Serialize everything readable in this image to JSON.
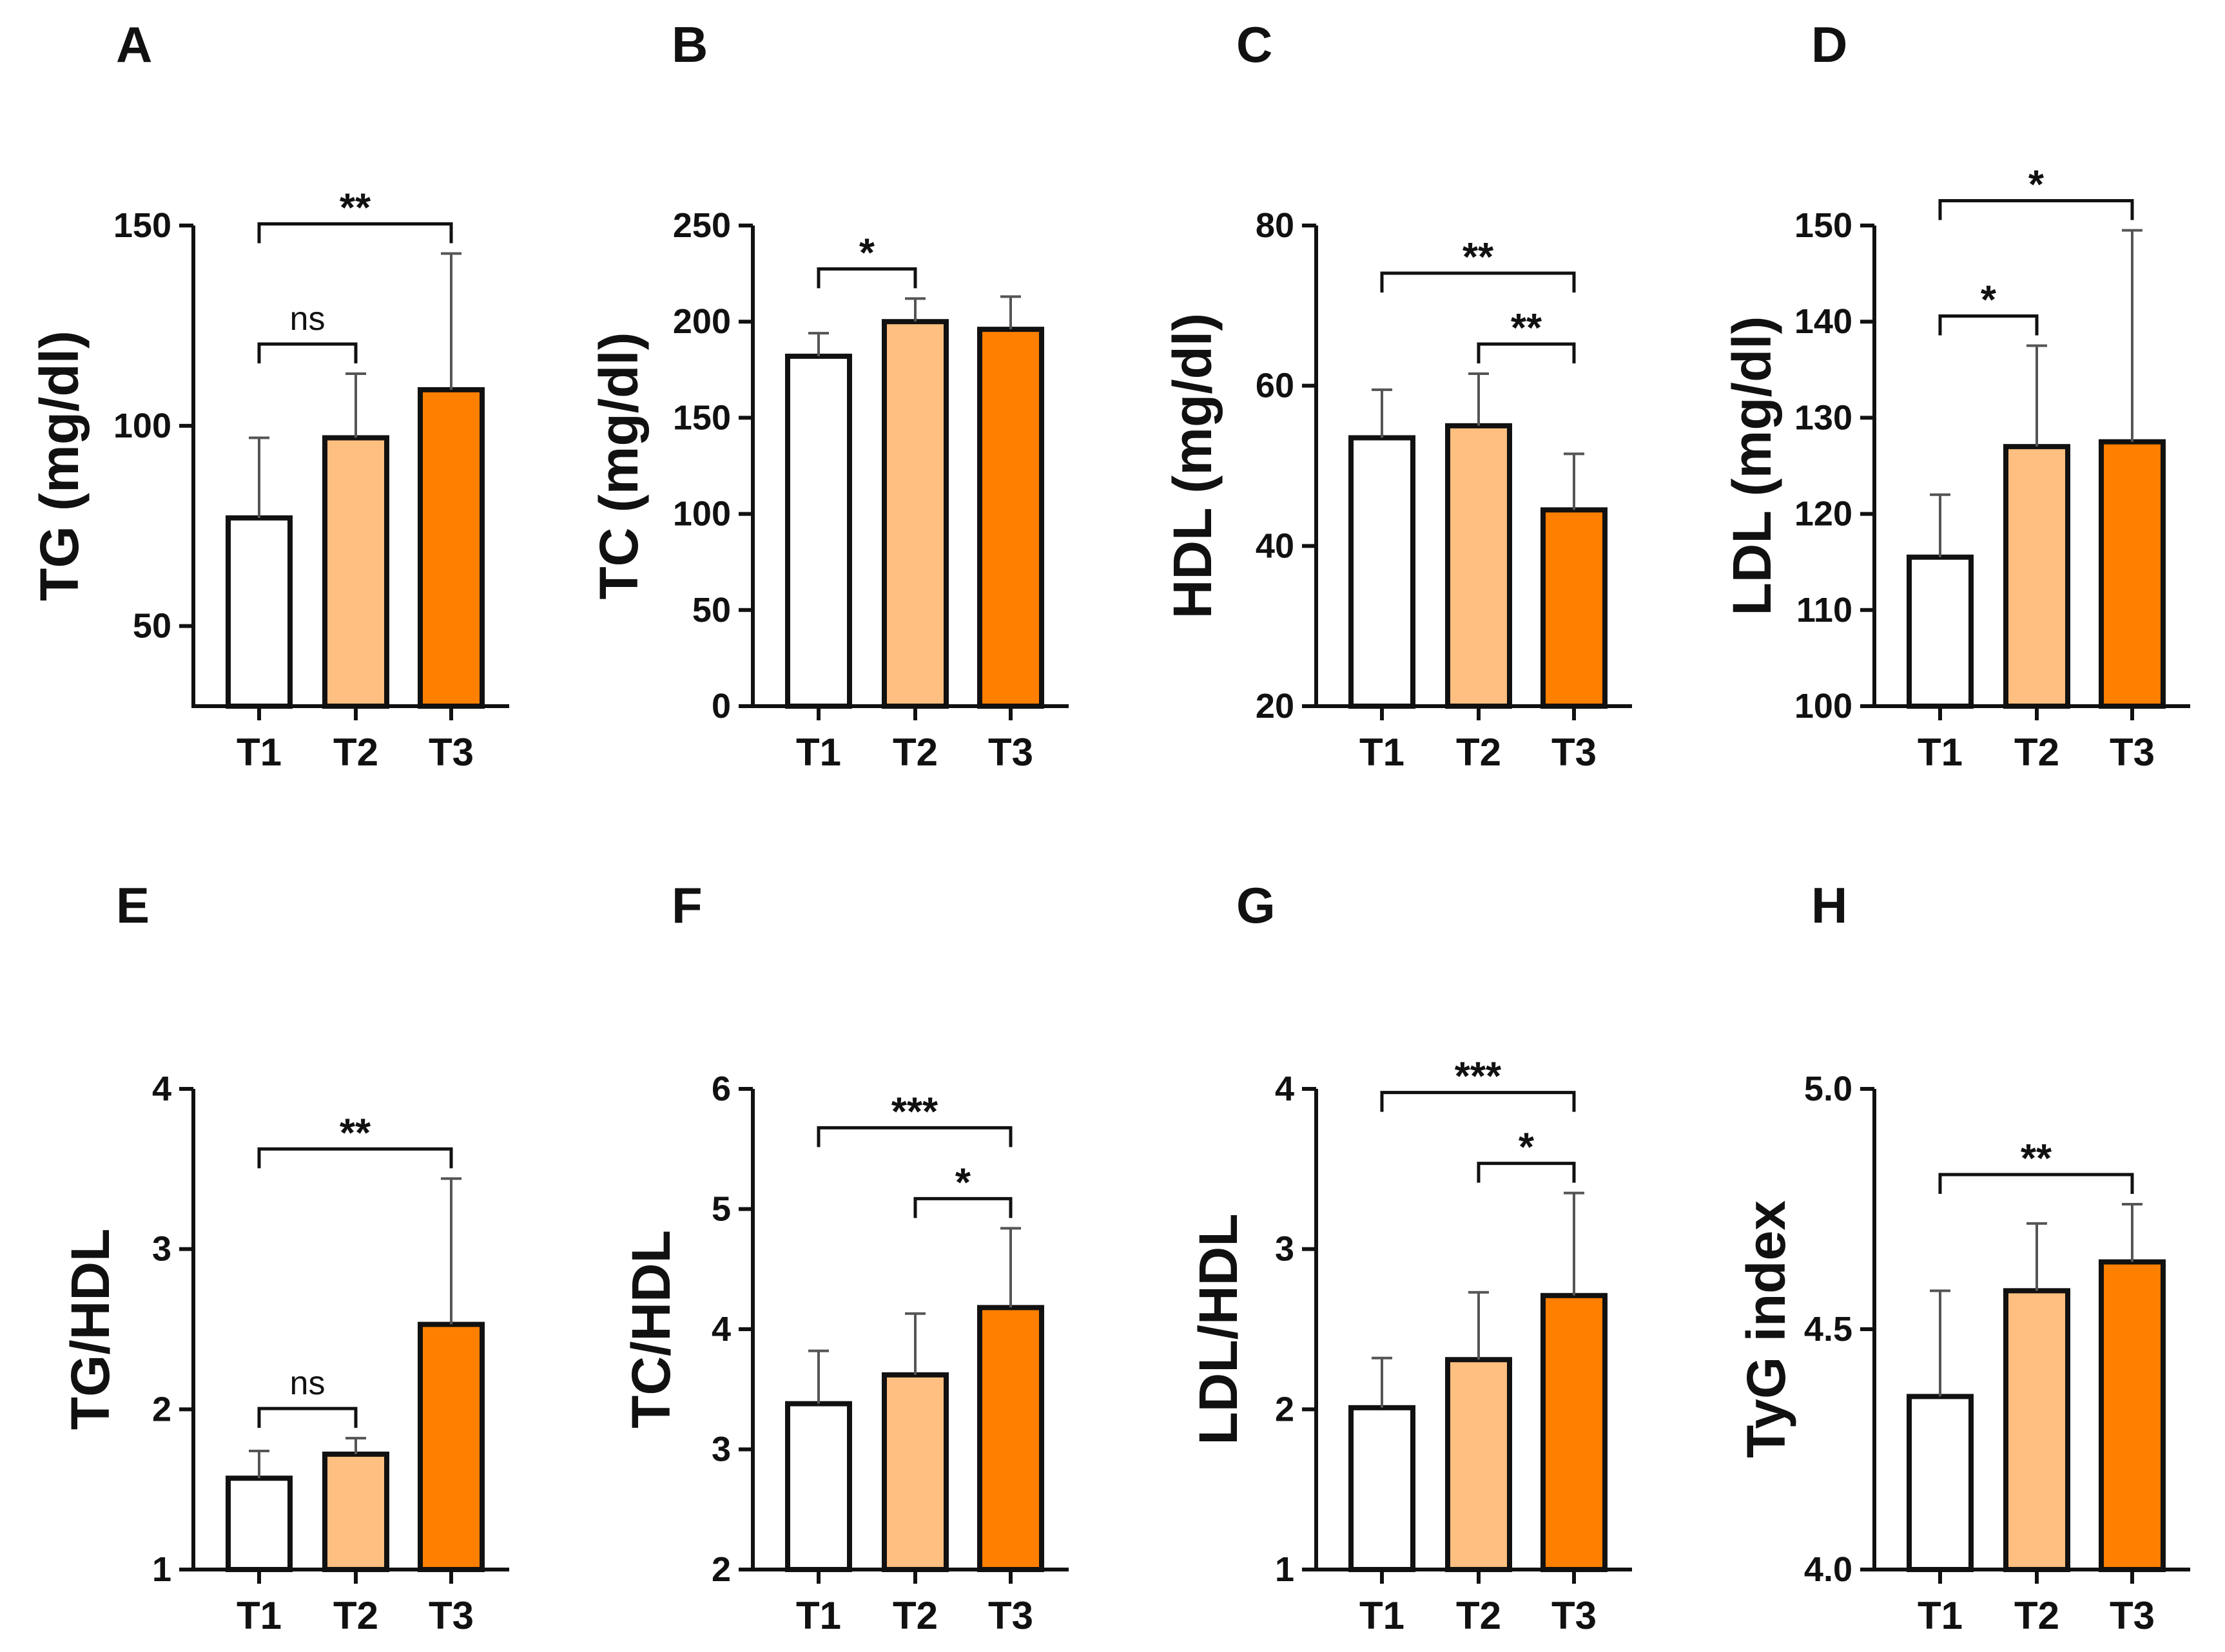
{
  "colors": {
    "T1": "#ffffff",
    "T2": "#ffbf80",
    "T3": "#ff7f00"
  },
  "chart_data": [
    {
      "type": "bar",
      "letter": "A",
      "ylabel": "TG (mg/dl)",
      "ylim": [
        30,
        150
      ],
      "yticks": [
        50,
        100,
        150
      ],
      "ytick_labels": [
        "50",
        "100",
        "150"
      ],
      "categories": [
        "T1",
        "T2",
        "T3"
      ],
      "values": [
        77,
        97,
        109
      ],
      "errors": [
        97,
        113,
        143
      ],
      "significance": [
        {
          "from": 0,
          "to": 1,
          "label": "ns"
        },
        {
          "from": 0,
          "to": 2,
          "label": "**"
        }
      ]
    },
    {
      "type": "bar",
      "letter": "B",
      "ylabel": "TC (mg/dl)",
      "ylim": [
        0,
        250
      ],
      "yticks": [
        0,
        50,
        100,
        150,
        200,
        250
      ],
      "ytick_labels": [
        "0",
        "50",
        "100",
        "150",
        "200",
        "250"
      ],
      "categories": [
        "T1",
        "T2",
        "T3"
      ],
      "values": [
        182,
        200,
        196
      ],
      "errors": [
        194,
        212,
        213
      ],
      "significance": [
        {
          "from": 0,
          "to": 1,
          "label": "*"
        }
      ]
    },
    {
      "type": "bar",
      "letter": "C",
      "ylabel": "HDL (mg/dl)",
      "ylim": [
        20,
        80
      ],
      "yticks": [
        20,
        40,
        60,
        80
      ],
      "ytick_labels": [
        "20",
        "40",
        "60",
        "80"
      ],
      "categories": [
        "T1",
        "T2",
        "T3"
      ],
      "values": [
        53.5,
        55,
        44.5
      ],
      "errors": [
        59.5,
        61.5,
        51.5
      ],
      "significance": [
        {
          "from": 1,
          "to": 2,
          "label": "**"
        },
        {
          "from": 0,
          "to": 2,
          "label": "**"
        }
      ]
    },
    {
      "type": "bar",
      "letter": "D",
      "ylabel": "LDL (mg/dl)",
      "ylim": [
        100,
        150
      ],
      "yticks": [
        100,
        110,
        120,
        130,
        140,
        150
      ],
      "ytick_labels": [
        "100",
        "110",
        "120",
        "130",
        "140",
        "150"
      ],
      "categories": [
        "T1",
        "T2",
        "T3"
      ],
      "values": [
        115.5,
        127,
        127.5
      ],
      "errors": [
        122,
        137.5,
        149.5
      ],
      "significance": [
        {
          "from": 0,
          "to": 1,
          "label": "*"
        },
        {
          "from": 0,
          "to": 2,
          "label": "*"
        }
      ]
    },
    {
      "type": "bar",
      "letter": "E",
      "ylabel": "TG/HDL",
      "ylim": [
        1,
        4
      ],
      "yticks": [
        1,
        2,
        3,
        4
      ],
      "ytick_labels": [
        "1",
        "2",
        "3",
        "4"
      ],
      "categories": [
        "T1",
        "T2",
        "T3"
      ],
      "values": [
        1.57,
        1.72,
        2.53
      ],
      "errors": [
        1.74,
        1.82,
        3.44
      ],
      "significance": [
        {
          "from": 0,
          "to": 1,
          "label": "ns"
        },
        {
          "from": 0,
          "to": 2,
          "label": "**"
        }
      ]
    },
    {
      "type": "bar",
      "letter": "F",
      "ylabel": "TC/HDL",
      "ylim": [
        2,
        6
      ],
      "yticks": [
        2,
        3,
        4,
        5,
        6
      ],
      "ytick_labels": [
        "2",
        "3",
        "4",
        "5",
        "6"
      ],
      "categories": [
        "T1",
        "T2",
        "T3"
      ],
      "values": [
        3.38,
        3.62,
        4.18
      ],
      "errors": [
        3.82,
        4.13,
        4.84
      ],
      "significance": [
        {
          "from": 1,
          "to": 2,
          "label": "*"
        },
        {
          "from": 0,
          "to": 2,
          "label": "***"
        }
      ]
    },
    {
      "type": "bar",
      "letter": "G",
      "ylabel": "LDL/HDL",
      "ylim": [
        1,
        4
      ],
      "yticks": [
        1,
        2,
        3,
        4
      ],
      "ytick_labels": [
        "1",
        "2",
        "3",
        "4"
      ],
      "categories": [
        "T1",
        "T2",
        "T3"
      ],
      "values": [
        2.01,
        2.31,
        2.71
      ],
      "errors": [
        2.32,
        2.73,
        3.35
      ],
      "significance": [
        {
          "from": 1,
          "to": 2,
          "label": "*"
        },
        {
          "from": 0,
          "to": 2,
          "label": "***"
        }
      ]
    },
    {
      "type": "bar",
      "letter": "H",
      "ylabel": "TyG index",
      "ylim": [
        4.0,
        5.0
      ],
      "yticks": [
        4.0,
        4.5,
        5.0
      ],
      "ytick_labels": [
        "4.0",
        "4.5",
        "5.0"
      ],
      "categories": [
        "T1",
        "T2",
        "T3"
      ],
      "values": [
        4.36,
        4.58,
        4.64
      ],
      "errors": [
        4.58,
        4.72,
        4.76
      ],
      "significance": [
        {
          "from": 0,
          "to": 2,
          "label": "**"
        }
      ]
    }
  ]
}
